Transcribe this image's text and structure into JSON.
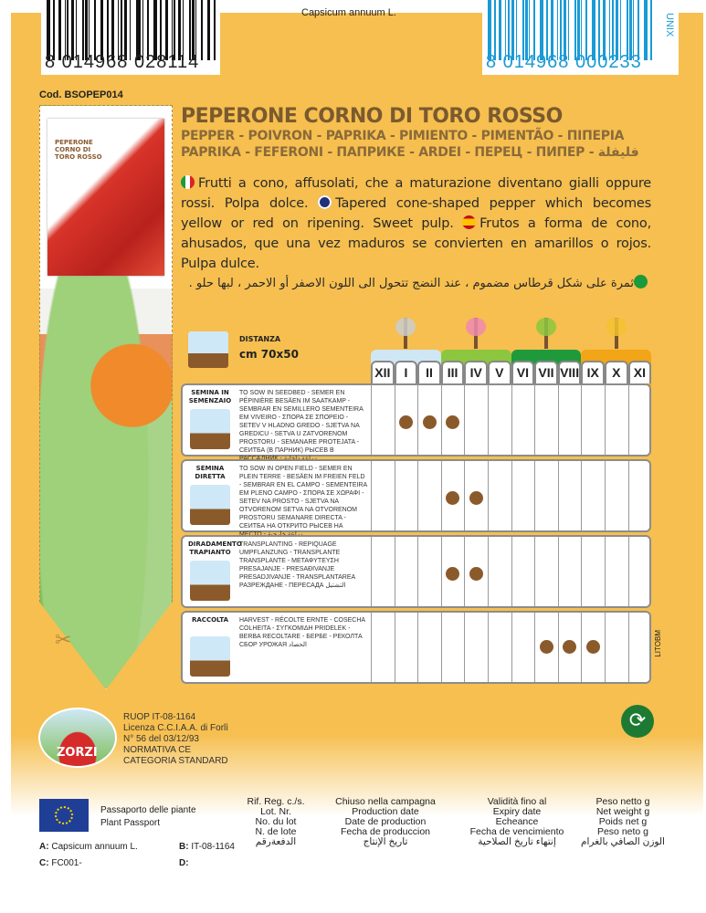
{
  "barcodes": {
    "left": "8 014968 028114",
    "right": "8 014968 000233",
    "right_brand": "UNIX"
  },
  "species": "Capsicum annuum L.",
  "code": "Cod. BSOPEP014",
  "thumbnail": {
    "title": "PEPERONE CORNO DI TORO ROSSO"
  },
  "title": "PEPERONE CORNO DI TORO ROSSO",
  "subtitle1": "PEPPER - POIVRON - PAPRIKA - PIMIENTO - PIMENTÃO - ΠΙΠΕΡΙΑ",
  "subtitle2": "PAPRIKA - FEFERONI - ПАПРИКЕ - ARDEI - ПЕРЕЦ - ПИПЕР - فليفلة",
  "description": {
    "it": "Frutti a cono, affusolati, che a maturazione diventano gialli oppure rossi. Polpa dolce.",
    "en": "Tapered cone-shaped pepper which becomes yellow or red on ripening. Sweet pulp.",
    "es": "Frutos a forma de cono, ahusados, que una vez maduros se convierten en amarillos o rojos. Pulpa dulce.",
    "ar": "ثمرة على شكل قرطاس مضموم ، عند النضج تتحول الى اللون الاصفر أو الاحمر ، لبها حلو ."
  },
  "distance": {
    "label": "DISTANZA",
    "value": "cm 70x50"
  },
  "calendar": {
    "months": [
      "XII",
      "I",
      "II",
      "III",
      "IV",
      "V",
      "VI",
      "VII",
      "VIII",
      "IX",
      "X",
      "XI"
    ],
    "season_colors": [
      "#CFE7F5",
      "#8CC63F",
      "#1E9A3A",
      "#F2A516"
    ],
    "rows": [
      {
        "label": "SEMINA IN SEMENZAIO",
        "text": "TO SOW IN SEEDBED - SEMER EN PÉPINIÈRE BESÄEN IM SAATKAMP - SEMBRAR EN SEMILLERO SEMENTEIRA EM VIVEIRO - ΣΠΟΡΑ ΣΕ ΣΠΟΡΕΙΟ - SETEV V HLADNO GREDO - SJETVA NA GREDICU - SETVA U ZATVORENOM PROSTORU - SEMANARE PROTEJATA - СЕИТБА (В ПАРНИК) РЫСЕВ В РАССАДНИК - زراعة داخلية",
        "months": [
          "I",
          "II",
          "III"
        ]
      },
      {
        "label": "SEMINA DIRETTA",
        "text": "TO SOW IN OPEN FIELD - SEMER EN PLEIN TERRE - BESÄEN IM FREIEN FELD - SEMBRAR EN EL CAMPO - SEMENTEIRA EM PLENO CAMPO - ΣΠΟΡΑ ΣΕ ΧΩΡΑΦΙ - SETEV NA PROSTO - SJETVA NA OTVORENOM SETVA NA OTVORENOM PROSTORU SEMANARE DIRECTA - СЕИТБА НА ОТКРИТО РЫСЕВ НА МЕСТО - زراعة خارجية",
        "months": [
          "III",
          "IV"
        ]
      },
      {
        "label": "DIRADAMENTO TRAPIANTO",
        "text": "TRANSPLANTING - REPIQUAGE UMPFLANZUNG - TRANSPLANTE TRANSPLANTE - ΜΕΤΑΦΥΤΕΥΣΗ PRESAJANJE - PRESAĐIVANJE PRESADJIVANJE - TRANSPLANTAREA РАЗРЕЖДАНЕ - ПЕРЕСАДА التشتيل",
        "months": [
          "III",
          "IV"
        ]
      },
      {
        "label": "RACCOLTA",
        "text": "HARVEST - RÉCOLTE ERNTE - COSECHA COLHEITA - ΣΥΓΚΟΜΙΔΗ PRIDELEK - BERBA RECOLTARE - БЕРБЕ - РЕКОЛТА СБОР УРОЖАЯ الحصاد",
        "months": [
          "VII",
          "VIII",
          "IX"
        ]
      }
    ]
  },
  "printer": "LITOBM",
  "company": {
    "logo": "ZORZI",
    "lines": [
      "RUOP IT-08-1164",
      "Licenza C.C.I.A.A. di Forlì",
      "N° 56 del 03/12/93",
      "NORMATIVA CE",
      "CATEGORIA STANDARD"
    ]
  },
  "passport": {
    "line1": "Passaporto delle piante",
    "line2": "Plant Passport",
    "A": "Capsicum annuum L.",
    "B": "IT-08-1164",
    "C": "FC001-",
    "D": ""
  },
  "columns": [
    [
      "Rif. Reg. c./s.",
      "Lot. Nr.",
      "No. du lot",
      "N. de lote",
      "الدفعةرقم"
    ],
    [
      "Chiuso nella campagna",
      "Production date",
      "Date de production",
      "Fecha de produccion",
      "تاريخ الإنتاج"
    ],
    [
      "Validità fino al",
      "Expiry date",
      "Echeance",
      "Fecha de vencimiento",
      "إنتهاء تاريخ الصلاحية"
    ],
    [
      "Peso netto g",
      "Net weight g",
      "Poids net g",
      "Peso neto g",
      "الوزن الصافي بالغرام"
    ]
  ]
}
